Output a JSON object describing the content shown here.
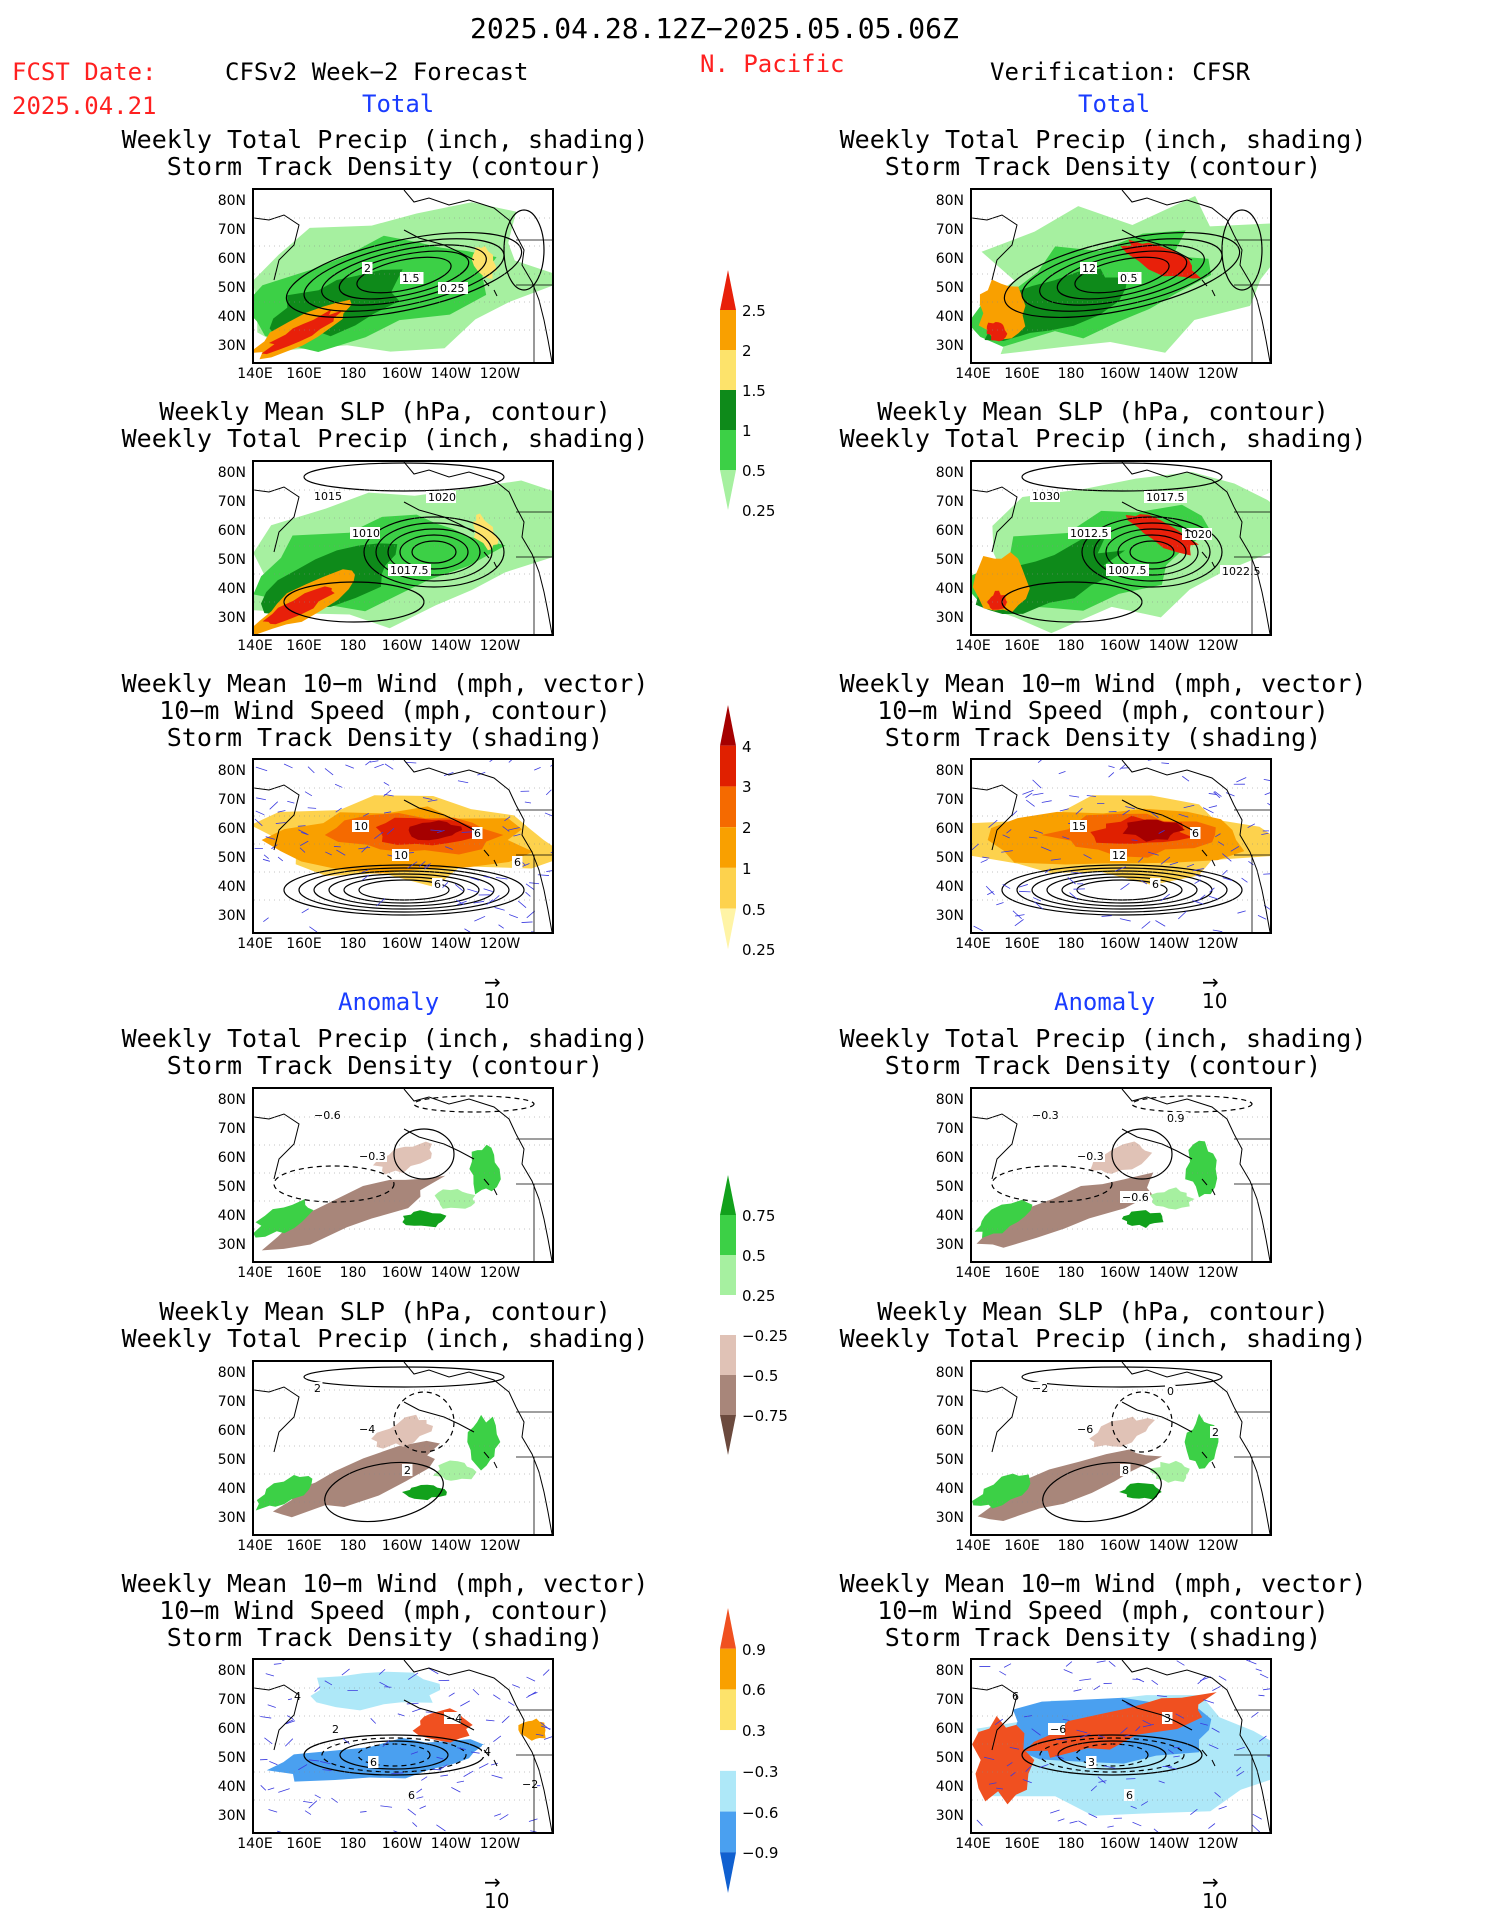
{
  "header": {
    "period": "2025.04.28.12Z−2025.05.05.06Z",
    "fcst_label": "FCST Date:",
    "fcst_date": "2025.04.21",
    "model": "CFSv2 Week−2 Forecast",
    "region": "N. Pacific",
    "verification": "Verification: CFSR"
  },
  "sections": {
    "total_left": "Total",
    "total_right": "Total",
    "anom_left": "Anomaly",
    "anom_right": "Anomaly"
  },
  "titles": {
    "precip_storm": [
      "Weekly Total Precip (inch, shading)",
      "Storm Track Density (contour)"
    ],
    "slp_precip": [
      "Weekly Mean SLP (hPa, contour)",
      "Weekly Total Precip (inch, shading)"
    ],
    "wind": [
      "Weekly Mean 10−m Wind (mph, vector)",
      "10−m Wind Speed (mph, contour)",
      "Storm Track Density (shading)"
    ]
  },
  "axes": {
    "lat_ticks": [
      "80N",
      "70N",
      "60N",
      "50N",
      "40N",
      "30N"
    ],
    "lon_ticks": [
      "140E",
      "160E",
      "180",
      "160W",
      "140W",
      "120W"
    ]
  },
  "ref_vector": "10",
  "colorbars": {
    "precip_total": {
      "labels": [
        "2.5",
        "2",
        "1.5",
        "1",
        "0.5",
        "0.25"
      ],
      "colors": [
        "#e8200a",
        "#f9a000",
        "#fde36b",
        "#0e8a1a",
        "#3cd046",
        "#a6f0a0"
      ]
    },
    "storm_total": {
      "labels": [
        "4",
        "3",
        "2",
        "1",
        "0.5",
        "0.25"
      ],
      "colors": [
        "#a50000",
        "#e02000",
        "#f56a00",
        "#f9a000",
        "#fdd24d",
        "#fff4a6"
      ]
    },
    "precip_anom": {
      "labels": [
        "0.75",
        "0.5",
        "0.25",
        "−0.25",
        "−0.5",
        "−0.75"
      ],
      "colors": [
        "#12a11c",
        "#3cd046",
        "#a6f0a0",
        "#ffffff",
        "#e0c2b6",
        "#a8867a",
        "#6b4a3e"
      ]
    },
    "storm_anom": {
      "labels": [
        "0.9",
        "0.6",
        "0.3",
        "−0.3",
        "−0.6",
        "−0.9"
      ],
      "colors": [
        "#f05020",
        "#f9a000",
        "#fde36b",
        "#ffffff",
        "#aee8f8",
        "#4aa0f0",
        "#1060d0"
      ]
    }
  },
  "contour_labels": {
    "l_prec_tot": [
      "2",
      "1.5",
      "0.25"
    ],
    "r_prec_tot": [
      "12",
      "0.5"
    ],
    "l_slp_tot": [
      "1015",
      "1010",
      "1017.5",
      "1020"
    ],
    "r_slp_tot": [
      "1030",
      "1012.5",
      "1007.5",
      "1017.5",
      "1020",
      "1022.5"
    ],
    "l_wind_tot": [
      "10",
      "10",
      "6",
      "6",
      "6"
    ],
    "r_wind_tot": [
      "15",
      "12",
      "6",
      "6"
    ],
    "l_prec_an": [
      "−0.6",
      "−0.3"
    ],
    "r_prec_an": [
      "−0.3",
      "−0.3",
      "−0.6",
      "0.9"
    ],
    "l_slp_an": [
      "2",
      "−4",
      "2"
    ],
    "r_slp_an": [
      "−2",
      "−6",
      "8",
      "0",
      "2"
    ],
    "l_wind_an": [
      "4",
      "2",
      "6",
      "6",
      "−4",
      "4",
      "−2"
    ],
    "r_wind_an": [
      "6",
      "−6",
      "3",
      "6",
      "3"
    ]
  }
}
